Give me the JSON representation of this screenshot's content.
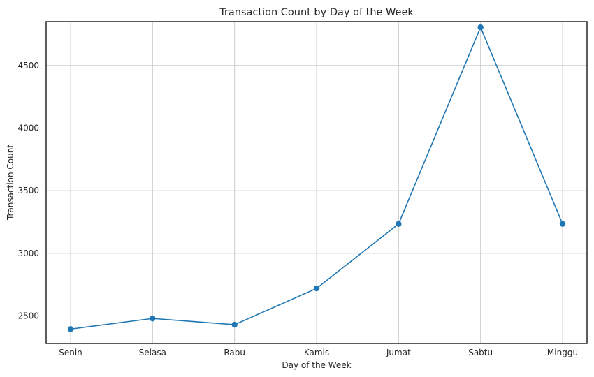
{
  "chart_data": {
    "type": "line",
    "title": "Transaction Count by Day of the Week",
    "xlabel": "Day of the Week",
    "ylabel": "Transaction Count",
    "categories": [
      "Senin",
      "Selasa",
      "Rabu",
      "Kamis",
      "Jumat",
      "Sabtu",
      "Minggu"
    ],
    "series": [
      {
        "values": [
          2395,
          2480,
          2430,
          2720,
          3235,
          4805,
          3235
        ],
        "color": "#1f77b4",
        "marker": "circle"
      }
    ],
    "ylim": [
      2280,
      4850
    ],
    "yticks": [
      2500,
      3000,
      3500,
      4000,
      4500
    ],
    "grid": true,
    "legend": "none"
  }
}
